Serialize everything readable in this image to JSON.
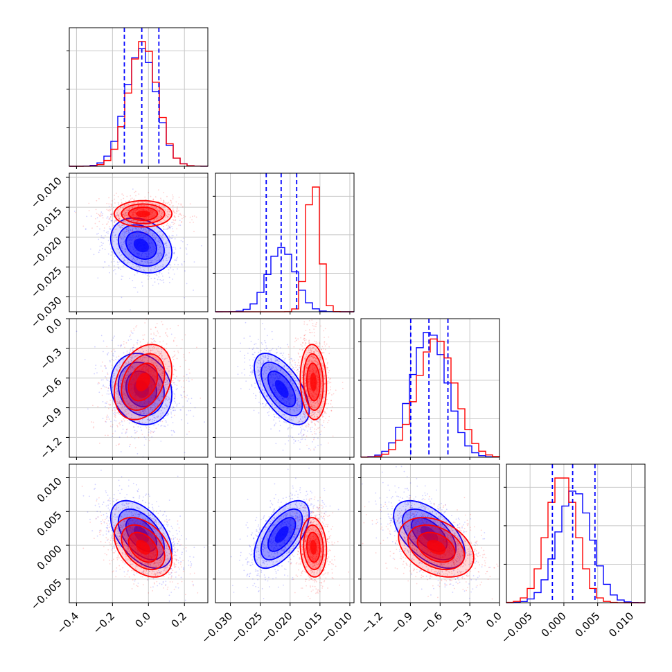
{
  "chart_data": {
    "type": "scatter",
    "subtype": "corner",
    "title": "",
    "grid": true,
    "legend": "none",
    "colors": {
      "series_a": "#0000ff",
      "series_b": "#ff0000",
      "axes": "#000000",
      "grid": "#c8c8c8"
    },
    "series": [
      {
        "color": "#0000ff"
      },
      {
        "color": "#ff0000"
      }
    ],
    "params": [
      {
        "range": [
          -0.44,
          0.33
        ],
        "ticks": [
          -0.4,
          -0.2,
          0.0,
          0.2
        ],
        "tick_labels": [
          "−0.4",
          "−0.2",
          "0.0",
          "0.2"
        ],
        "quantiles": [
          -0.134,
          -0.037,
          0.058
        ],
        "mean": [
          -0.04,
          -0.03
        ],
        "sd": [
          0.085,
          0.08
        ]
      },
      {
        "range": [
          -0.0325,
          -0.0093
        ],
        "ticks": [
          -0.03,
          -0.025,
          -0.02,
          -0.015,
          -0.01
        ],
        "tick_labels": [
          "−0.030",
          "−0.025",
          "−0.020",
          "−0.015",
          "−0.010"
        ],
        "quantiles": [
          -0.024,
          -0.0215,
          -0.0189
        ],
        "mean": [
          -0.0214,
          -0.0161
        ],
        "sd": [
          0.0023,
          0.0011
        ]
      },
      {
        "range": [
          -1.4,
          0.0
        ],
        "ticks": [
          -1.2,
          -0.9,
          -0.6,
          -0.3,
          0.0
        ],
        "tick_labels": [
          "−1.2",
          "−0.9",
          "−0.6",
          "−0.3",
          "0.0"
        ],
        "quantiles": [
          -0.897,
          -0.713,
          -0.521
        ],
        "mean": [
          -0.71,
          -0.64
        ],
        "sd": [
          0.18,
          0.19
        ]
      },
      {
        "range": [
          -0.0085,
          0.012
        ],
        "ticks": [
          -0.005,
          0.0,
          0.005,
          0.01
        ],
        "tick_labels": [
          "−0.005",
          "0.000",
          "0.005",
          "0.010"
        ],
        "quantiles": [
          -0.0017,
          0.0013,
          0.0046
        ],
        "mean": [
          0.0016,
          -0.0003
        ],
        "sd": [
          0.0025,
          0.0022
        ]
      }
    ],
    "correlations": {
      "blue": {
        "1-0": -0.25,
        "2-0": -0.15,
        "3-0": -0.5,
        "2-1": -0.6,
        "3-1": 0.6,
        "3-2": -0.55
      },
      "red": {
        "1-0": 0.0,
        "2-0": 0.3,
        "3-0": -0.4,
        "2-1": -0.1,
        "3-1": -0.1,
        "3-2": -0.35
      }
    }
  }
}
